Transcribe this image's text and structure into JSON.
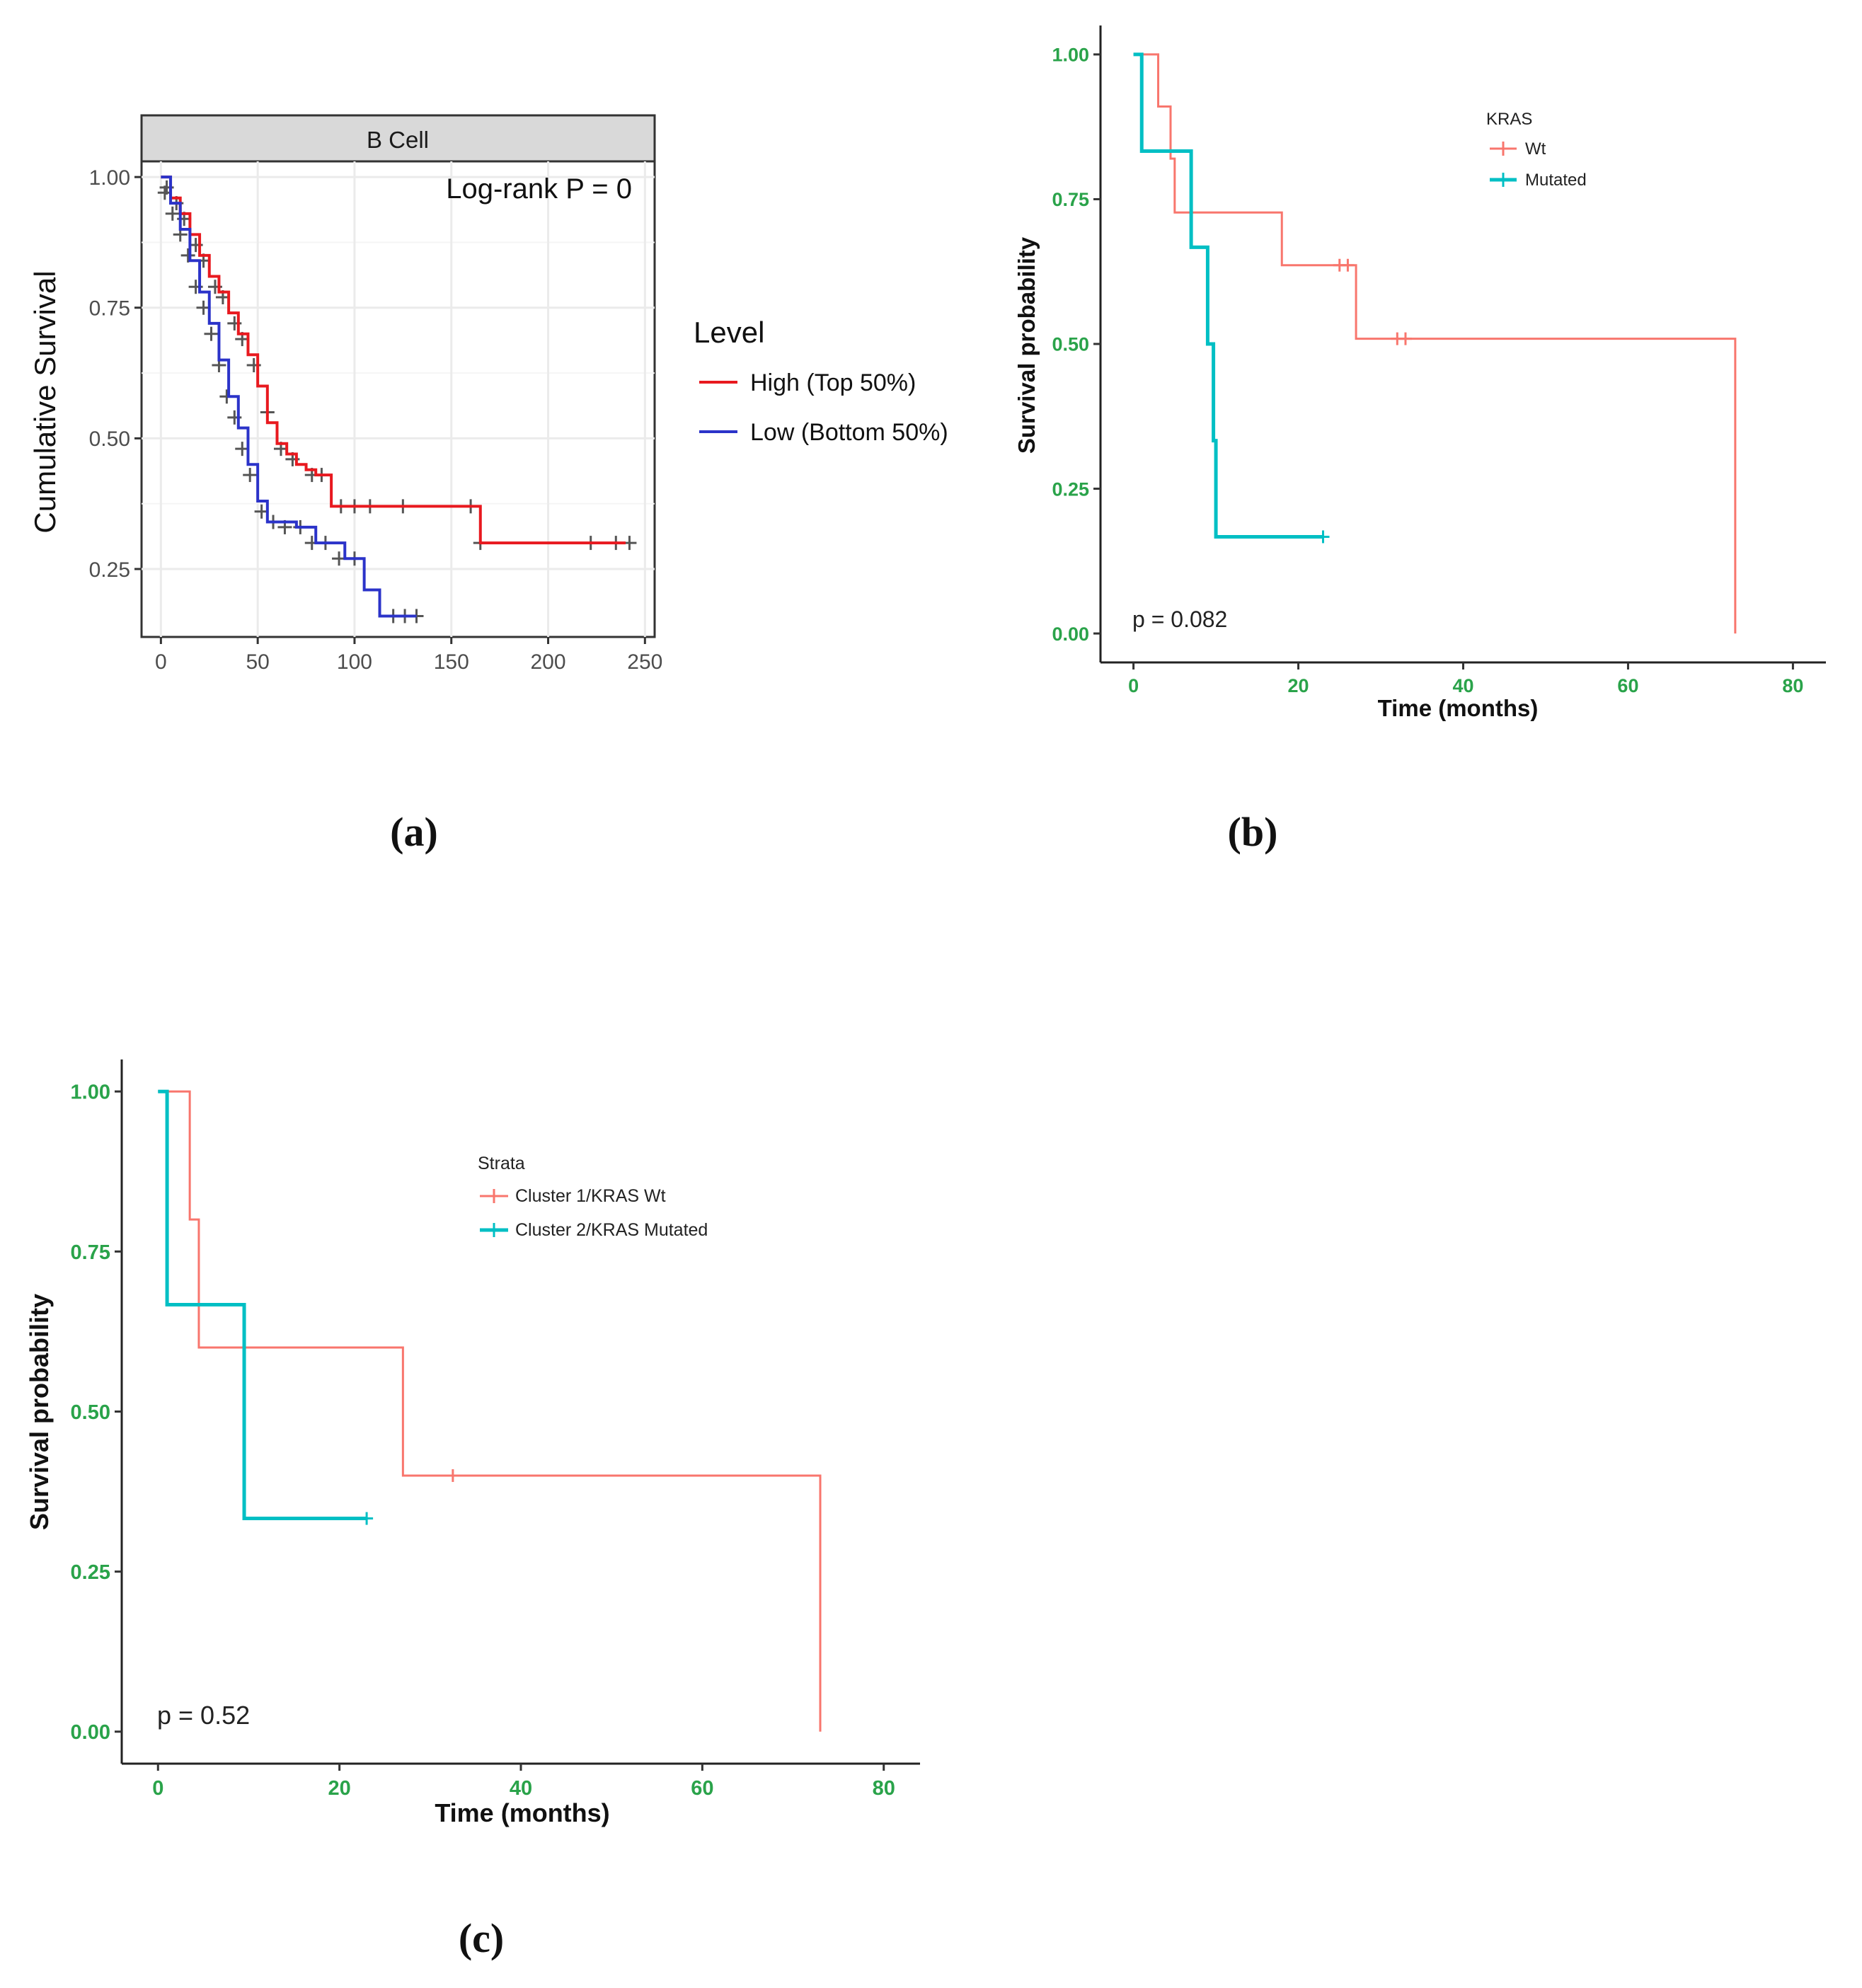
{
  "panels": {
    "a": {
      "label": "(a)"
    },
    "b": {
      "label": "(b)"
    },
    "c": {
      "label": "(c)"
    }
  },
  "chart_data": [
    {
      "panel": "a",
      "type": "line",
      "subtype": "kaplan-meier",
      "facet_title": "B Cell",
      "annotation": "Log-rank P = 0",
      "xlabel": "",
      "ylabel": "Cumulative Survival",
      "xlim": [
        -10,
        255
      ],
      "ylim": [
        0.12,
        1.03
      ],
      "xticks": [
        0,
        50,
        100,
        150,
        200,
        250
      ],
      "xtick_labels": [
        "0",
        "50",
        "100",
        "150",
        "200",
        "250"
      ],
      "yticks": [
        0.25,
        0.5,
        0.75,
        1.0
      ],
      "ytick_labels": [
        "0.25",
        "0.50",
        "0.75",
        "1.00"
      ],
      "grid": true,
      "legend_title": "Level",
      "legend_position": "right",
      "colors": {
        "censor": "#555555",
        "grid": "#ebebeb",
        "facet_strip": "#d9d9d9"
      },
      "series": [
        {
          "name": "High (Top 50%)",
          "color": "#e8191f",
          "x": [
            0,
            5,
            10,
            15,
            20,
            25,
            30,
            35,
            40,
            45,
            50,
            55,
            60,
            65,
            70,
            75,
            80,
            88,
            100,
            130,
            165,
            200,
            240
          ],
          "y": [
            1.0,
            0.96,
            0.93,
            0.89,
            0.85,
            0.81,
            0.78,
            0.74,
            0.7,
            0.66,
            0.6,
            0.53,
            0.49,
            0.47,
            0.45,
            0.44,
            0.43,
            0.37,
            0.37,
            0.37,
            0.3,
            0.3,
            0.3
          ],
          "censor_x": [
            3,
            8,
            12,
            18,
            22,
            28,
            32,
            38,
            42,
            48,
            55,
            62,
            68,
            78,
            83,
            93,
            100,
            108,
            125,
            160,
            165,
            222,
            235,
            242
          ],
          "censor_y": [
            0.98,
            0.95,
            0.92,
            0.87,
            0.84,
            0.79,
            0.77,
            0.72,
            0.69,
            0.64,
            0.55,
            0.48,
            0.46,
            0.43,
            0.43,
            0.37,
            0.37,
            0.37,
            0.37,
            0.37,
            0.3,
            0.3,
            0.3,
            0.3
          ]
        },
        {
          "name": "Low (Bottom 50%)",
          "color": "#2b33c9",
          "x": [
            0,
            5,
            10,
            15,
            20,
            25,
            30,
            35,
            40,
            45,
            50,
            55,
            70,
            80,
            95,
            105,
            113,
            120,
            132
          ],
          "y": [
            1.0,
            0.95,
            0.9,
            0.84,
            0.78,
            0.72,
            0.65,
            0.58,
            0.52,
            0.45,
            0.38,
            0.34,
            0.33,
            0.3,
            0.27,
            0.21,
            0.16,
            0.16,
            0.16
          ],
          "censor_x": [
            2,
            6,
            10,
            14,
            18,
            22,
            26,
            30,
            34,
            38,
            42,
            46,
            52,
            58,
            64,
            72,
            78,
            85,
            92,
            100,
            120,
            126,
            132
          ],
          "censor_y": [
            0.97,
            0.93,
            0.89,
            0.85,
            0.79,
            0.75,
            0.7,
            0.64,
            0.58,
            0.54,
            0.48,
            0.43,
            0.36,
            0.34,
            0.33,
            0.33,
            0.3,
            0.3,
            0.27,
            0.27,
            0.16,
            0.16,
            0.16
          ]
        }
      ]
    },
    {
      "panel": "b",
      "type": "line",
      "subtype": "kaplan-meier",
      "annotation": "p = 0.082",
      "xlabel": "Time (months)",
      "ylabel": "Survival probability",
      "xlim": [
        -4,
        84
      ],
      "ylim": [
        -0.05,
        1.05
      ],
      "xticks": [
        0,
        20,
        40,
        60,
        80
      ],
      "xtick_labels": [
        "0",
        "20",
        "40",
        "60",
        "80"
      ],
      "yticks": [
        0.0,
        0.25,
        0.5,
        0.75,
        1.0
      ],
      "ytick_labels": [
        "0.00",
        "0.25",
        "0.50",
        "0.75",
        "1.00"
      ],
      "grid": false,
      "legend_title": "KRAS",
      "legend_position": "top-right",
      "colors": {
        "tick_labels": "#2aa34a"
      },
      "series": [
        {
          "name": "Wt",
          "color": "#f8766d",
          "x": [
            0,
            3,
            3,
            4.5,
            4.5,
            5,
            5,
            18,
            18,
            27,
            27,
            73,
            73
          ],
          "y": [
            1.0,
            1.0,
            0.91,
            0.91,
            0.82,
            0.82,
            0.727,
            0.727,
            0.636,
            0.636,
            0.509,
            0.509,
            0.0
          ],
          "censor_x": [
            25,
            26,
            32,
            33
          ],
          "censor_y": [
            0.636,
            0.636,
            0.509,
            0.509
          ]
        },
        {
          "name": "Mutated",
          "color": "#00bfc4",
          "x": [
            0,
            1,
            1,
            7,
            7,
            9,
            9,
            9.7,
            9.7,
            10,
            10,
            23
          ],
          "y": [
            1.0,
            1.0,
            0.833,
            0.833,
            0.667,
            0.667,
            0.5,
            0.5,
            0.333,
            0.333,
            0.167,
            0.167
          ],
          "censor_x": [
            23
          ],
          "censor_y": [
            0.167
          ]
        }
      ]
    },
    {
      "panel": "c",
      "type": "line",
      "subtype": "kaplan-meier",
      "annotation": "p = 0.52",
      "xlabel": "Time (months)",
      "ylabel": "Survival probability",
      "xlim": [
        -4,
        84
      ],
      "ylim": [
        -0.05,
        1.05
      ],
      "xticks": [
        0,
        20,
        40,
        60,
        80
      ],
      "xtick_labels": [
        "0",
        "20",
        "40",
        "60",
        "80"
      ],
      "yticks": [
        0.0,
        0.25,
        0.5,
        0.75,
        1.0
      ],
      "ytick_labels": [
        "0.00",
        "0.25",
        "0.50",
        "0.75",
        "1.00"
      ],
      "grid": false,
      "legend_title": "Strata",
      "legend_position": "top-center",
      "colors": {
        "tick_labels": "#2aa34a"
      },
      "series": [
        {
          "name": "Cluster 1/KRAS Wt",
          "color": "#f8766d",
          "x": [
            0,
            3.5,
            3.5,
            4.5,
            4.5,
            27,
            27,
            73,
            73
          ],
          "y": [
            1.0,
            1.0,
            0.8,
            0.8,
            0.6,
            0.6,
            0.4,
            0.4,
            0.0
          ],
          "censor_x": [
            32.5
          ],
          "censor_y": [
            0.4
          ]
        },
        {
          "name": "Cluster 2/KRAS Mutated",
          "color": "#00bfc4",
          "x": [
            0,
            1,
            1,
            9.5,
            9.5,
            23
          ],
          "y": [
            1.0,
            1.0,
            0.667,
            0.667,
            0.333,
            0.333
          ],
          "censor_x": [
            23
          ],
          "censor_y": [
            0.333
          ]
        }
      ]
    }
  ]
}
